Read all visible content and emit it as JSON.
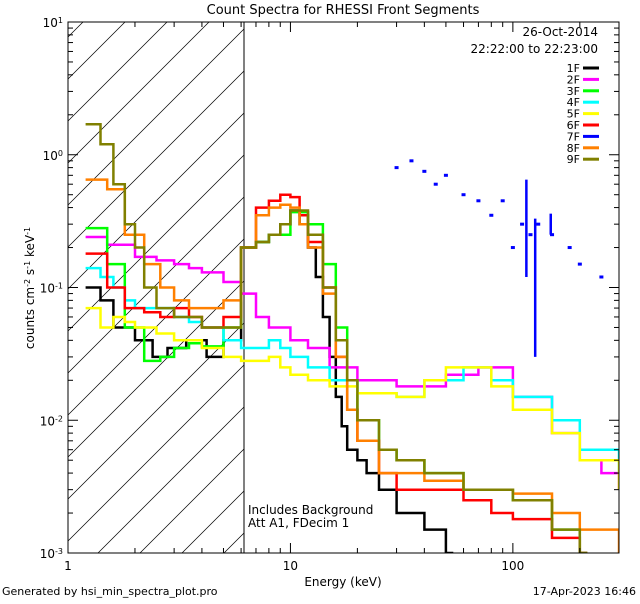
{
  "chart_data": {
    "type": "line",
    "title": "Count Spectra for RHESSI Front Segments",
    "xlabel": "Energy (keV)",
    "ylabel": "counts cm-2 s-1 keV-1",
    "ylabel_parts": {
      "base": "counts cm",
      "e1": "-2",
      "mid1": " s",
      "e2": "-1",
      "mid2": " keV",
      "e3": "-1"
    },
    "xscale": "log",
    "yscale": "log",
    "xlim": [
      1,
      300
    ],
    "ylim": [
      0.001,
      10
    ],
    "x_ticks": [
      {
        "value": 1,
        "label": "1"
      },
      {
        "value": 10,
        "label": "10"
      },
      {
        "value": 100,
        "label": "100"
      }
    ],
    "y_ticks": [
      {
        "value": 10,
        "base": "10",
        "exp": "1"
      },
      {
        "value": 1,
        "base": "10",
        "exp": "0"
      },
      {
        "value": 0.1,
        "base": "10",
        "exp": "-1"
      },
      {
        "value": 0.01,
        "base": "10",
        "exp": "-2"
      },
      {
        "value": 0.001,
        "base": "10",
        "exp": "-3"
      }
    ],
    "date": "26-Oct-2014",
    "time_range": "22:22:00 to 22:23:00",
    "annotations": [
      "Includes Background",
      "Att A1, FDecim 1"
    ],
    "hatched_region_keV": [
      1,
      6
    ],
    "series": [
      {
        "name": "1F",
        "color": "#000000",
        "x": [
          1.2,
          1.4,
          1.6,
          2.0,
          2.4,
          2.8,
          3.4,
          4.2,
          5.0,
          6.0,
          7.0,
          8.0,
          9.0,
          10,
          11,
          12,
          13,
          14,
          15,
          16,
          17,
          18,
          20,
          22,
          25,
          30,
          40,
          50
        ],
        "values": [
          0.1,
          0.08,
          0.05,
          0.04,
          0.03,
          0.035,
          0.04,
          0.03,
          0.04,
          0.2,
          0.22,
          0.25,
          0.3,
          0.38,
          0.3,
          0.2,
          0.12,
          0.06,
          0.03,
          0.015,
          0.009,
          0.006,
          0.005,
          0.004,
          0.003,
          0.002,
          0.0015,
          0.001
        ]
      },
      {
        "name": "2F",
        "color": "#ff00ff",
        "x": [
          1.2,
          1.5,
          2.0,
          2.5,
          3.0,
          3.5,
          4.0,
          5.0,
          6.0,
          7.0,
          8.0,
          10,
          12,
          15,
          20,
          30,
          50,
          70,
          100,
          150,
          200,
          250,
          300
        ],
        "values": [
          0.24,
          0.21,
          0.17,
          0.16,
          0.15,
          0.14,
          0.13,
          0.11,
          0.09,
          0.06,
          0.05,
          0.04,
          0.035,
          0.025,
          0.02,
          0.018,
          0.022,
          0.025,
          0.015,
          0.008,
          0.005,
          0.004,
          0.003
        ]
      },
      {
        "name": "3F",
        "color": "#00ff00",
        "x": [
          1.2,
          1.5,
          1.8,
          2.2,
          2.6,
          3.0,
          3.5,
          4.0,
          5.0,
          6.0,
          7.0,
          8.0,
          10,
          12,
          14,
          16,
          18,
          20,
          25,
          30,
          40,
          60,
          80,
          100,
          150,
          200
        ],
        "values": [
          0.28,
          0.15,
          0.05,
          0.028,
          0.03,
          0.035,
          0.038,
          0.036,
          0.05,
          0.2,
          0.22,
          0.25,
          0.37,
          0.3,
          0.15,
          0.05,
          0.02,
          0.01,
          0.006,
          0.005,
          0.004,
          0.003,
          0.003,
          0.0025,
          0.0015,
          0.001
        ]
      },
      {
        "name": "4F",
        "color": "#00ffff",
        "x": [
          1.2,
          1.4,
          1.6,
          1.8,
          2.0,
          2.5,
          3.0,
          3.5,
          4.0,
          5.0,
          6.0,
          7,
          8,
          9,
          10,
          12,
          15,
          20,
          30,
          40,
          60,
          80,
          100,
          150,
          200,
          300
        ],
        "values": [
          0.14,
          0.12,
          0.1,
          0.08,
          0.07,
          0.07,
          0.06,
          0.055,
          0.05,
          0.04,
          0.035,
          0.035,
          0.04,
          0.035,
          0.03,
          0.025,
          0.02,
          0.016,
          0.015,
          0.02,
          0.025,
          0.02,
          0.015,
          0.01,
          0.006,
          0.004
        ]
      },
      {
        "name": "5F",
        "color": "#ffff00",
        "x": [
          1.2,
          1.4,
          1.6,
          1.8,
          2.0,
          2.5,
          3.0,
          3.5,
          4.0,
          5.0,
          6.0,
          7,
          8,
          9,
          10,
          12,
          15,
          20,
          30,
          40,
          50,
          60,
          80,
          100,
          150,
          200,
          300
        ],
        "values": [
          0.07,
          0.05,
          0.06,
          0.055,
          0.05,
          0.045,
          0.04,
          0.04,
          0.035,
          0.03,
          0.028,
          0.028,
          0.03,
          0.025,
          0.022,
          0.02,
          0.018,
          0.016,
          0.015,
          0.02,
          0.025,
          0.025,
          0.018,
          0.012,
          0.008,
          0.005,
          0.003
        ]
      },
      {
        "name": "6F",
        "color": "#ff0000",
        "x": [
          1.2,
          1.5,
          1.8,
          2.2,
          2.6,
          3.0,
          3.5,
          4.0,
          5.0,
          6.0,
          7.0,
          8.0,
          9,
          10,
          11,
          12,
          14,
          16,
          18,
          20,
          25,
          30,
          40,
          60,
          80,
          100,
          150,
          200
        ],
        "values": [
          0.18,
          0.1,
          0.07,
          0.065,
          0.06,
          0.07,
          0.06,
          0.05,
          0.06,
          0.2,
          0.4,
          0.45,
          0.5,
          0.48,
          0.35,
          0.22,
          0.1,
          0.03,
          0.012,
          0.007,
          0.004,
          0.003,
          0.003,
          0.0025,
          0.002,
          0.0018,
          0.0013,
          0.001
        ]
      },
      {
        "name": "7F",
        "color": "#0000ff",
        "x": [
          30,
          35,
          40,
          45,
          50,
          60,
          70,
          80,
          90,
          100,
          110,
          120,
          130,
          150,
          180,
          200,
          250
        ],
        "values": [
          0.8,
          0.9,
          0.75,
          0.6,
          0.7,
          0.5,
          0.45,
          0.35,
          0.45,
          0.2,
          0.3,
          0.25,
          0.3,
          0.25,
          0.2,
          0.15,
          0.12
        ]
      },
      {
        "name": "8F",
        "color": "#ff8000",
        "x": [
          1.2,
          1.5,
          1.8,
          2.2,
          2.6,
          3.0,
          3.5,
          4.0,
          5.0,
          6.0,
          7.0,
          8.0,
          9,
          10,
          11,
          12,
          14,
          16,
          18,
          20,
          25,
          30,
          40,
          60,
          80,
          100,
          150,
          200,
          300
        ],
        "values": [
          0.65,
          0.55,
          0.25,
          0.15,
          0.1,
          0.08,
          0.07,
          0.07,
          0.08,
          0.2,
          0.35,
          0.4,
          0.42,
          0.4,
          0.3,
          0.2,
          0.09,
          0.03,
          0.012,
          0.007,
          0.004,
          0.004,
          0.0035,
          0.003,
          0.003,
          0.0028,
          0.002,
          0.0015,
          0.001
        ]
      },
      {
        "name": "9F",
        "color": "#808000",
        "x": [
          1.2,
          1.4,
          1.6,
          1.8,
          2.0,
          2.2,
          2.5,
          3.0,
          3.5,
          4.0,
          5.0,
          6.0,
          7,
          8,
          9,
          10,
          12,
          14,
          16,
          18,
          20,
          25,
          30,
          40,
          60,
          80,
          100,
          150,
          200
        ],
        "values": [
          1.7,
          1.2,
          0.6,
          0.3,
          0.2,
          0.1,
          0.07,
          0.06,
          0.06,
          0.05,
          0.05,
          0.2,
          0.22,
          0.25,
          0.3,
          0.38,
          0.25,
          0.1,
          0.04,
          0.02,
          0.01,
          0.006,
          0.005,
          0.004,
          0.003,
          0.003,
          0.0025,
          0.0015,
          0.001
        ]
      }
    ]
  },
  "footer": {
    "generated_by": "Generated by hsi_min_spectra_plot.pro",
    "timestamp": "17-Apr-2023 16:46"
  }
}
